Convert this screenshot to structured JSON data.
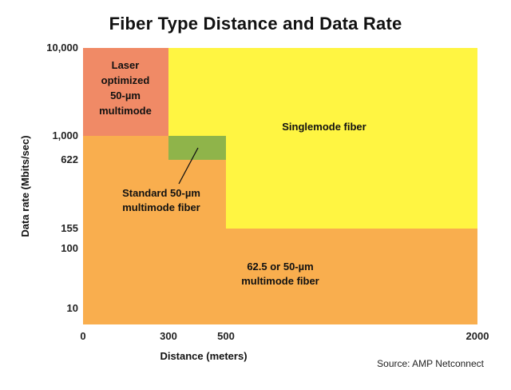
{
  "chart_data": {
    "type": "area",
    "title": "Fiber Type Distance and Data Rate",
    "xlabel": "Distance (meters)",
    "ylabel": "Data rate (Mbits/sec)",
    "x_ticks": [
      0,
      300,
      500,
      2000
    ],
    "x_tick_labels": [
      "0",
      "300",
      "500",
      "2000"
    ],
    "y_ticks": [
      10,
      100,
      155,
      622,
      1000,
      10000
    ],
    "y_tick_labels": [
      "10",
      "100",
      "155",
      "622",
      "1,000",
      "10,000"
    ],
    "xlim": [
      0,
      2000
    ],
    "ylim": [
      0,
      10000
    ],
    "regions": [
      {
        "name": "62.5 or 50-µm multimode fiber",
        "label_lines": [
          "62.5 or 50-µm",
          "multimode fiber"
        ],
        "color": "#F9AE4E",
        "distance_max_m": 2000,
        "rate_max_mbps": 155
      },
      {
        "name": "Singlemode fiber",
        "label_lines": [
          "Singlemode fiber"
        ],
        "color": "#FFF542",
        "distance_max_m": 2000,
        "rate_max_mbps": 10000
      },
      {
        "name": "Laser optimized 50-µm multimode",
        "label_lines": [
          "Laser",
          "optimized",
          "50-µm",
          "multimode"
        ],
        "color": "#F08A66",
        "distance_max_m": 300,
        "rate_max_mbps": 10000
      },
      {
        "name": "Standard 50-µm multimode fiber",
        "label_lines": [
          "Standard 50-µm",
          "multimode fiber"
        ],
        "color": "#8FB44A",
        "distance_range_m": [
          300,
          500
        ],
        "rate_range_mbps": [
          622,
          1000
        ]
      }
    ],
    "source": "Source: AMP Netconnect"
  }
}
